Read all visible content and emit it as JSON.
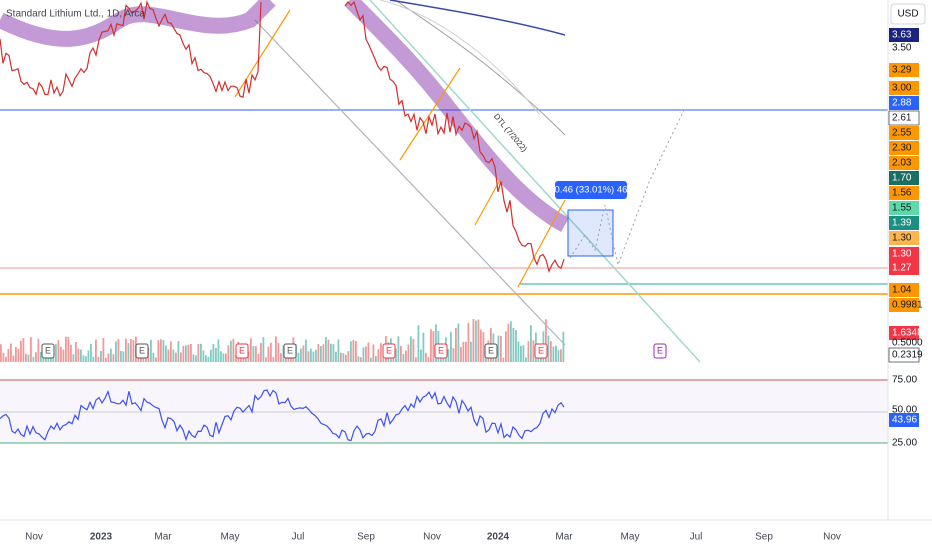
{
  "header": {
    "title": "Standard Lithium Ltd., 1D, Arca",
    "currency": "USD"
  },
  "price_labels": [
    {
      "text": "3.63",
      "bg": "#1a237e",
      "fg": "#ffffff"
    },
    {
      "text": "3.50",
      "bg": "none",
      "fg": "#131722"
    },
    {
      "text": "3.29",
      "bg": "#ff9800",
      "fg": "#131722"
    },
    {
      "text": "3.00",
      "bg": "#ff9800",
      "fg": "#131722"
    },
    {
      "text": "2.88",
      "bg": "#2962ff",
      "fg": "#ffffff"
    },
    {
      "text": "2.61",
      "bg": "#ffffff",
      "fg": "#131722"
    },
    {
      "text": "2.55",
      "bg": "#ff9800",
      "fg": "#131722"
    },
    {
      "text": "2.30",
      "bg": "#ff9800",
      "fg": "#131722"
    },
    {
      "text": "2.03",
      "bg": "#ff9800",
      "fg": "#131722"
    },
    {
      "text": "1.70",
      "bg": "#1b6e62",
      "fg": "#ffffff"
    },
    {
      "text": "1.56",
      "bg": "#ff9800",
      "fg": "#131722"
    },
    {
      "text": "1.55",
      "bg": "#5fd9a8",
      "fg": "#131722"
    },
    {
      "text": "1.39",
      "bg": "#1b8f80",
      "fg": "#ffffff"
    },
    {
      "text": "1.30",
      "bg": "#ffb74d",
      "fg": "#131722"
    },
    {
      "text": "1.30",
      "bg": "#f23645",
      "fg": "#ffffff"
    },
    {
      "text": "1.27",
      "bg": "#f23645",
      "fg": "#ffffff"
    },
    {
      "text": "1.04",
      "bg": "#ff9800",
      "fg": "#131722"
    },
    {
      "text": "0.9981",
      "bg": "#ff9800",
      "fg": "#131722"
    },
    {
      "text": "1.634M",
      "bg": "#f23645",
      "fg": "#ffffff"
    },
    {
      "text": "0.5000",
      "bg": "none",
      "fg": "#131722"
    },
    {
      "text": "0.2319",
      "bg": "#ffffff",
      "fg": "#131722"
    }
  ],
  "rsi_labels": [
    {
      "text": "75.00",
      "bg": "none",
      "fg": "#131722"
    },
    {
      "text": "50.00",
      "bg": "none",
      "fg": "#131722"
    },
    {
      "text": "43.96",
      "bg": "#2962ff",
      "fg": "#ffffff"
    },
    {
      "text": "25.00",
      "bg": "none",
      "fg": "#131722"
    }
  ],
  "time_axis": [
    "Nov",
    "2023",
    "Mar",
    "May",
    "Jul",
    "Sep",
    "Nov",
    "2024",
    "Mar",
    "May",
    "Jul",
    "Sep",
    "Nov"
  ],
  "annotations": {
    "measure": "0.46 (33.01%) 46",
    "trendline": "DTL (7/2022)"
  },
  "event_markers": [
    "E",
    "E",
    "E",
    "E",
    "E",
    "E",
    "E",
    "E",
    "E"
  ]
}
